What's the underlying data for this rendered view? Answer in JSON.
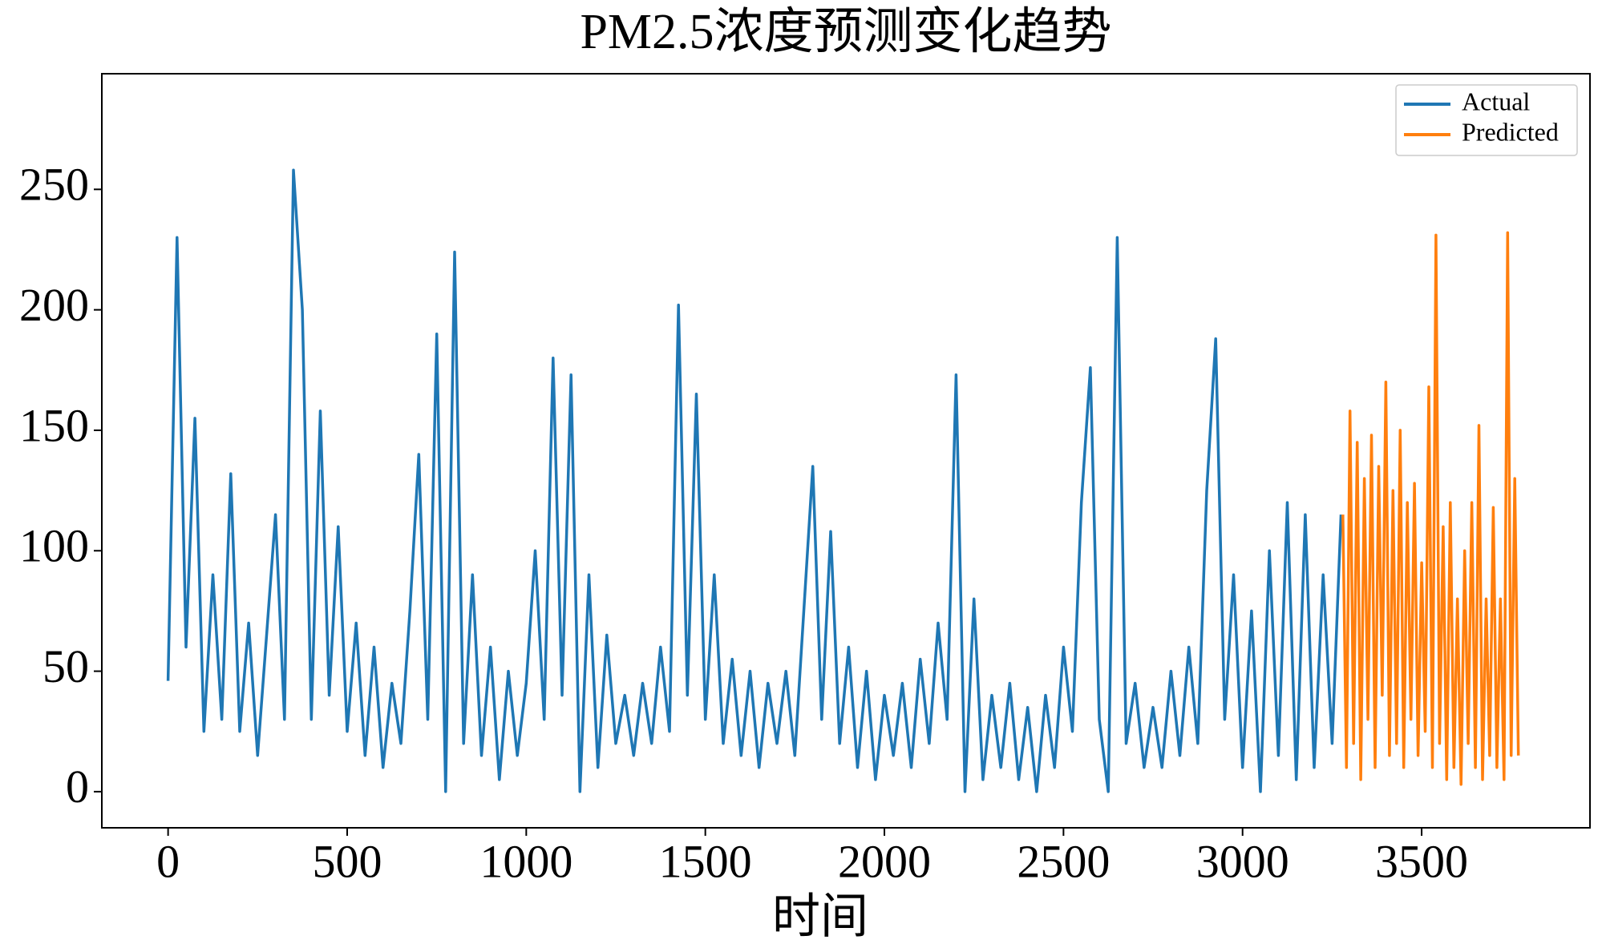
{
  "chart_data": {
    "type": "line",
    "title": "PM2.5浓度预测变化趋势",
    "xlabel": "时间",
    "xlim": [
      -185,
      3970
    ],
    "ylim": [
      -15,
      298
    ],
    "xticks": [
      0,
      500,
      1000,
      1500,
      2000,
      2500,
      3000,
      3500
    ],
    "yticks": [
      0,
      50,
      100,
      150,
      200,
      250
    ],
    "legend": "upper right",
    "grid": false,
    "series": [
      {
        "name": "Actual",
        "color": "#1f77b4",
        "x": [
          0,
          25,
          50,
          75,
          100,
          125,
          150,
          175,
          200,
          225,
          250,
          275,
          300,
          325,
          350,
          375,
          400,
          425,
          450,
          475,
          500,
          525,
          550,
          575,
          600,
          625,
          650,
          675,
          700,
          725,
          750,
          775,
          800,
          825,
          850,
          875,
          900,
          925,
          950,
          975,
          1000,
          1025,
          1050,
          1075,
          1100,
          1125,
          1150,
          1175,
          1200,
          1225,
          1250,
          1275,
          1300,
          1325,
          1350,
          1375,
          1400,
          1425,
          1450,
          1475,
          1500,
          1525,
          1550,
          1575,
          1600,
          1625,
          1650,
          1675,
          1700,
          1725,
          1750,
          1775,
          1800,
          1825,
          1850,
          1875,
          1900,
          1925,
          1950,
          1975,
          2000,
          2025,
          2050,
          2075,
          2100,
          2125,
          2150,
          2175,
          2200,
          2225,
          2250,
          2275,
          2300,
          2325,
          2350,
          2375,
          2400,
          2425,
          2450,
          2475,
          2500,
          2525,
          2550,
          2575,
          2600,
          2625,
          2650,
          2675,
          2700,
          2725,
          2750,
          2775,
          2800,
          2825,
          2850,
          2875,
          2900,
          2925,
          2950,
          2975,
          3000,
          3025,
          3050,
          3075,
          3100,
          3125,
          3150,
          3175,
          3200,
          3225,
          3250,
          3275
        ],
        "values": [
          46,
          230,
          60,
          155,
          25,
          90,
          30,
          132,
          25,
          70,
          15,
          65,
          115,
          30,
          258,
          200,
          30,
          158,
          40,
          110,
          25,
          70,
          15,
          60,
          10,
          45,
          20,
          75,
          140,
          30,
          190,
          0,
          224,
          20,
          90,
          15,
          60,
          5,
          50,
          15,
          45,
          100,
          30,
          180,
          40,
          173,
          0,
          90,
          10,
          65,
          20,
          40,
          15,
          45,
          20,
          60,
          25,
          202,
          40,
          165,
          30,
          90,
          20,
          55,
          15,
          50,
          10,
          45,
          20,
          50,
          15,
          75,
          135,
          30,
          108,
          20,
          60,
          10,
          50,
          5,
          40,
          15,
          45,
          10,
          55,
          20,
          70,
          30,
          173,
          0,
          80,
          5,
          40,
          10,
          45,
          5,
          35,
          0,
          40,
          10,
          60,
          25,
          120,
          176,
          30,
          0,
          230,
          20,
          45,
          10,
          35,
          10,
          50,
          15,
          60,
          20,
          125,
          188,
          30,
          90,
          10,
          75,
          0,
          100,
          15,
          120,
          5,
          115,
          10,
          90,
          20,
          115
        ]
      },
      {
        "name": "Predicted",
        "color": "#ff7f0e",
        "x": [
          3280,
          3290,
          3300,
          3310,
          3320,
          3330,
          3340,
          3350,
          3360,
          3370,
          3380,
          3390,
          3400,
          3410,
          3420,
          3430,
          3440,
          3450,
          3460,
          3470,
          3480,
          3490,
          3500,
          3510,
          3520,
          3530,
          3540,
          3550,
          3560,
          3570,
          3580,
          3590,
          3600,
          3610,
          3620,
          3630,
          3640,
          3650,
          3660,
          3670,
          3680,
          3690,
          3700,
          3710,
          3720,
          3730,
          3740,
          3750,
          3760,
          3770
        ],
        "values": [
          115,
          10,
          158,
          20,
          145,
          5,
          130,
          30,
          148,
          10,
          135,
          40,
          170,
          15,
          125,
          20,
          150,
          10,
          120,
          30,
          128,
          15,
          95,
          25,
          168,
          10,
          231,
          20,
          110,
          5,
          120,
          10,
          80,
          3,
          100,
          20,
          120,
          10,
          152,
          5,
          80,
          15,
          118,
          10,
          80,
          5,
          232,
          15,
          130,
          15
        ]
      }
    ]
  }
}
